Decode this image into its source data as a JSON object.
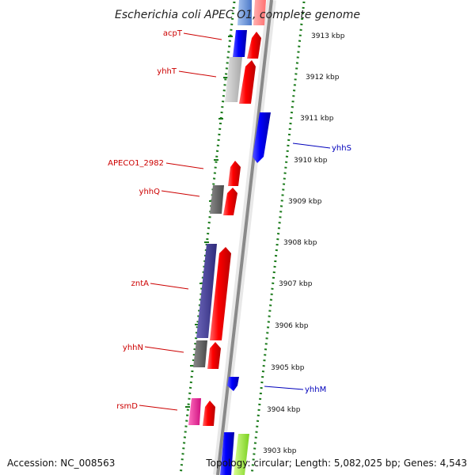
{
  "title": "Escherichia coli APEC O1, complete genome",
  "footer": {
    "accession": "Accession: NC_008563",
    "topology": "Topology: circular; Length: 5,082,025 bp; Genes: 4,543"
  },
  "colors": {
    "forward_label": "#cc0000",
    "reverse_label": "#0000bb",
    "tick": "#1a7a1a",
    "backbone": "#8a8a8a"
  },
  "kbp_labels": [
    "3913 kbp",
    "3912 kbp",
    "3911 kbp",
    "3910 kbp",
    "3909 kbp",
    "3908 kbp",
    "3907 kbp",
    "3906 kbp",
    "3905 kbp",
    "3904 kbp",
    "3903 kbp"
  ],
  "gene_labels": [
    {
      "name": "acpT",
      "strand": "forward"
    },
    {
      "name": "yhhT",
      "strand": "forward"
    },
    {
      "name": "yhhS",
      "strand": "reverse"
    },
    {
      "name": "APECO1_2982",
      "strand": "forward"
    },
    {
      "name": "yhhQ",
      "strand": "forward"
    },
    {
      "name": "zntA",
      "strand": "forward"
    },
    {
      "name": "yhhN",
      "strand": "forward"
    },
    {
      "name": "yhhM",
      "strand": "reverse"
    },
    {
      "name": "rsmD",
      "strand": "forward"
    }
  ]
}
